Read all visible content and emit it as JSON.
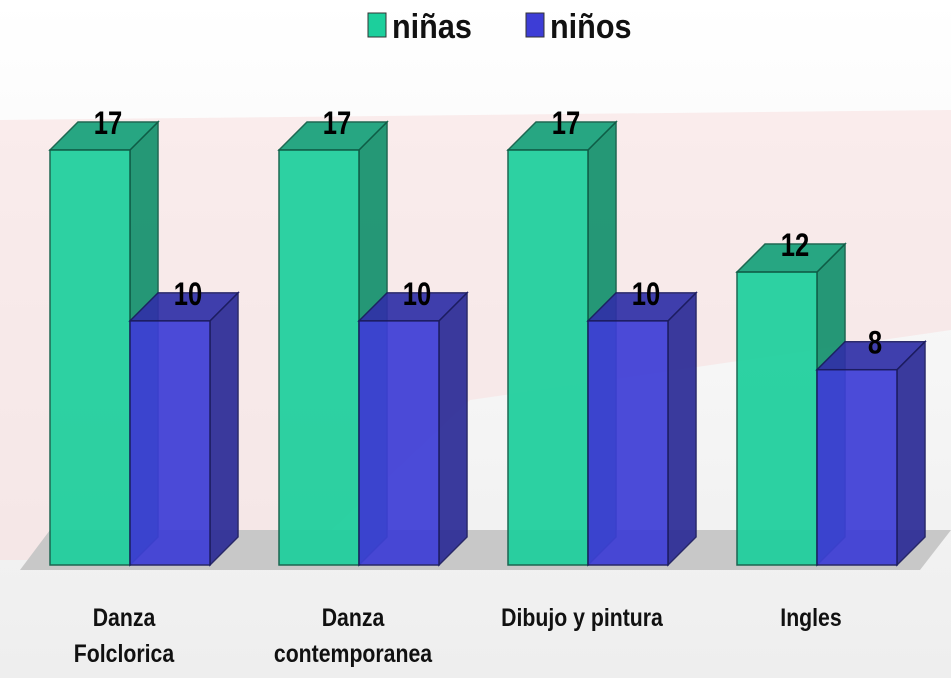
{
  "chart_data": {
    "type": "bar3d",
    "categories": [
      "Danza\nFolclorica",
      "Danza\ncontemporanea",
      "Dibujo y pintura",
      "Ingles"
    ],
    "series": [
      {
        "name": "niñas",
        "color": "#1ccf9c",
        "values": [
          17,
          17,
          17,
          12
        ]
      },
      {
        "name": "niños",
        "color": "#3d3dd6",
        "values": [
          10,
          10,
          10,
          8
        ]
      }
    ],
    "legend": "top"
  }
}
